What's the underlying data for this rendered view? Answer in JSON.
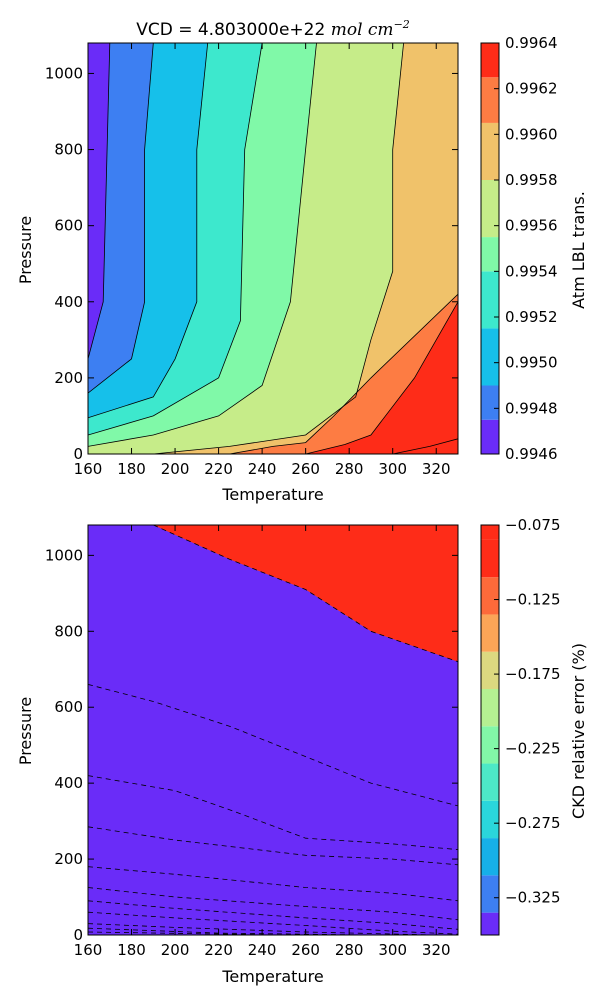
{
  "chart_data": [
    {
      "type": "filled-contour",
      "title": "VCD = 4.803000e+22",
      "title_math": "mol cm",
      "title_math_exp": "−2",
      "xlabel": "Temperature",
      "ylabel": "Pressure",
      "xlim": [
        160,
        330
      ],
      "ylim": [
        0,
        1080
      ],
      "xticks": [
        160,
        180,
        200,
        220,
        240,
        260,
        280,
        300,
        320
      ],
      "yticks": [
        0,
        200,
        400,
        600,
        800,
        1000
      ],
      "colorbar": {
        "label": "Atm LBL trans.",
        "levels": [
          0.9946,
          0.9947,
          0.9948,
          0.9949,
          0.995,
          0.9951,
          0.9952,
          0.9953,
          0.9954,
          0.9955,
          0.9956,
          0.9957,
          0.9958,
          0.9959,
          0.996,
          0.9961,
          0.9962,
          0.9963,
          0.9964
        ],
        "tick_values": [
          0.9946,
          0.9948,
          0.995,
          0.9952,
          0.9954,
          0.9956,
          0.9958,
          0.996,
          0.9962,
          0.9964
        ],
        "tick_labels": [
          "0.9946",
          "0.9948",
          "0.9950",
          "0.9952",
          "0.9954",
          "0.9956",
          "0.9958",
          "0.9960",
          "0.9962",
          "0.9964"
        ],
        "band_colors": [
          "#6a2cf8",
          "#3d7ff2",
          "#16c0ea",
          "#3de8cd",
          "#80f9a8",
          "#c6ec89",
          "#f0c26a",
          "#fd7c43",
          "#fe2c18"
        ],
        "band_edges": [
          0.9946,
          0.99475,
          0.9949,
          0.99515,
          0.9954,
          0.99555,
          0.9958,
          0.99605,
          0.99625,
          0.9964
        ]
      },
      "boundaries": [
        {
          "points": [
            [
              160,
              250
            ],
            [
              167,
              400
            ],
            [
              170,
              1080
            ]
          ]
        },
        {
          "points": [
            [
              160,
              160
            ],
            [
              180,
              250
            ],
            [
              186,
              400
            ],
            [
              186,
              800
            ],
            [
              190,
              1080
            ]
          ]
        },
        {
          "points": [
            [
              160,
              95
            ],
            [
              190,
              150
            ],
            [
              200,
              250
            ],
            [
              210,
              400
            ],
            [
              210,
              800
            ],
            [
              215,
              1080
            ]
          ]
        },
        {
          "points": [
            [
              160,
              50
            ],
            [
              190,
              100
            ],
            [
              220,
              200
            ],
            [
              230,
              350
            ],
            [
              232,
              800
            ],
            [
              240,
              1080
            ]
          ]
        },
        {
          "points": [
            [
              160,
              20
            ],
            [
              190,
              50
            ],
            [
              220,
              100
            ],
            [
              240,
              180
            ],
            [
              253,
              400
            ],
            [
              260,
              800
            ],
            [
              265,
              1080
            ]
          ]
        },
        {
          "points": [
            [
              190,
              0
            ],
            [
              225,
              20
            ],
            [
              260,
              50
            ],
            [
              283,
              150
            ],
            [
              290,
              300
            ],
            [
              300,
              480
            ],
            [
              300,
              800
            ],
            [
              305,
              1080
            ]
          ]
        },
        {
          "points": [
            [
              225,
              0
            ],
            [
              245,
              20
            ],
            [
              260,
              30
            ],
            [
              273,
              100
            ],
            [
              290,
              200
            ],
            [
              330,
              420
            ]
          ]
        },
        {
          "points": [
            [
              260,
              0
            ],
            [
              278,
              25
            ],
            [
              290,
              50
            ],
            [
              310,
              200
            ],
            [
              330,
              400
            ]
          ]
        },
        {
          "points": [
            [
              300,
              0
            ],
            [
              317,
              20
            ],
            [
              330,
              40
            ]
          ]
        }
      ]
    },
    {
      "type": "filled-contour",
      "xlabel": "Temperature",
      "ylabel": "Pressure",
      "xlim": [
        160,
        330
      ],
      "ylim": [
        0,
        1080
      ],
      "xticks": [
        160,
        180,
        200,
        220,
        240,
        260,
        280,
        300,
        320
      ],
      "yticks": [
        0,
        200,
        400,
        600,
        800,
        1000
      ],
      "colorbar": {
        "label": "CKD relative error (%)",
        "vmin": -0.35,
        "vmax": -0.075,
        "tick_values": [
          -0.325,
          -0.275,
          -0.225,
          -0.175,
          -0.125,
          -0.075
        ],
        "tick_labels": [
          "−0.325",
          "−0.275",
          "−0.225",
          "−0.175",
          "−0.125",
          "−0.075"
        ],
        "band_edges": [
          -0.35,
          -0.335,
          -0.31,
          -0.285,
          -0.26,
          -0.235,
          -0.21,
          -0.185,
          -0.16,
          -0.135,
          -0.11,
          -0.085,
          -0.075
        ],
        "band_colors": [
          "#6a2cf8",
          "#3d7ff2",
          "#16b0e8",
          "#2ad6db",
          "#4de8c7",
          "#82f7a8",
          "#b5f092",
          "#dcd880",
          "#fba557",
          "#fd6a3a",
          "#fe2c18",
          "#fe2c18"
        ]
      },
      "contours": [
        {
          "points": [
            [
              160,
              0
            ],
            [
              330,
              0
            ]
          ]
        },
        {
          "points": [
            [
              160,
              8
            ],
            [
              250,
              0
            ]
          ]
        },
        {
          "points": [
            [
              160,
              18
            ],
            [
              220,
              5
            ],
            [
              290,
              0
            ]
          ]
        },
        {
          "points": [
            [
              160,
              30
            ],
            [
              200,
              20
            ],
            [
              260,
              8
            ],
            [
              320,
              0
            ]
          ]
        },
        {
          "points": [
            [
              160,
              60
            ],
            [
              200,
              45
            ],
            [
              260,
              25
            ],
            [
              300,
              10
            ],
            [
              330,
              2
            ]
          ]
        },
        {
          "points": [
            [
              160,
              90
            ],
            [
              200,
              70
            ],
            [
              260,
              45
            ],
            [
              300,
              30
            ],
            [
              330,
              15
            ]
          ]
        },
        {
          "points": [
            [
              160,
              125
            ],
            [
              200,
              100
            ],
            [
              260,
              75
            ],
            [
              300,
              60
            ],
            [
              330,
              40
            ]
          ]
        },
        {
          "points": [
            [
              160,
              180
            ],
            [
              200,
              160
            ],
            [
              260,
              125
            ],
            [
              300,
              110
            ],
            [
              330,
              90
            ]
          ]
        },
        {
          "points": [
            [
              160,
              285
            ],
            [
              200,
              250
            ],
            [
              260,
              210
            ],
            [
              300,
              200
            ],
            [
              330,
              185
            ]
          ]
        },
        {
          "points": [
            [
              160,
              420
            ],
            [
              200,
              380
            ],
            [
              225,
              330
            ],
            [
              260,
              255
            ],
            [
              300,
              240
            ],
            [
              330,
              225
            ]
          ]
        },
        {
          "points": [
            [
              160,
              660
            ],
            [
              190,
              615
            ],
            [
              225,
              550
            ],
            [
              260,
              470
            ],
            [
              290,
              400
            ],
            [
              330,
              340
            ]
          ]
        },
        {
          "points": [
            [
              190,
              1080
            ],
            [
              225,
              990
            ],
            [
              260,
              910
            ],
            [
              290,
              800
            ],
            [
              330,
              720
            ]
          ]
        }
      ]
    }
  ]
}
